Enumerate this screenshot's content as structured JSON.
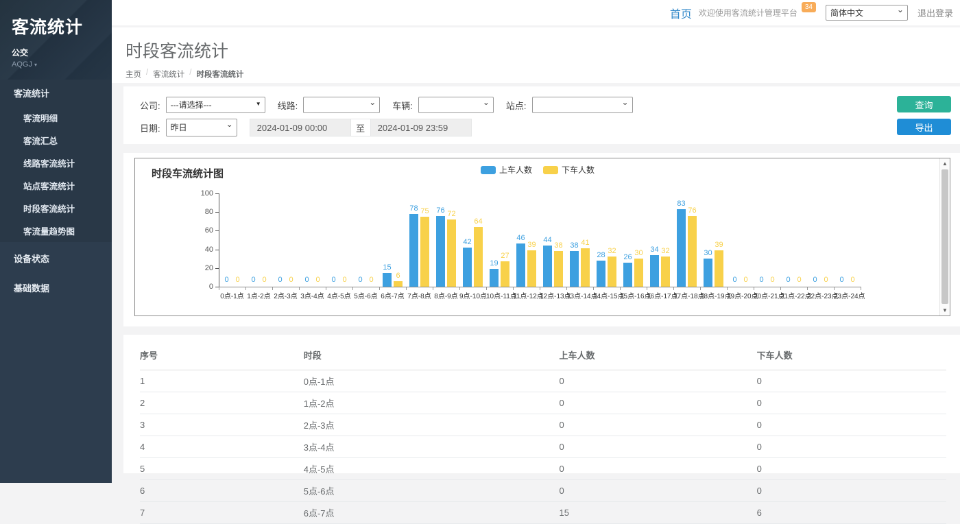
{
  "brand": {
    "title": "客流统计",
    "subtitle": "公交",
    "org": "AQGJ"
  },
  "sidebar": {
    "sections": [
      {
        "label": "客流统计",
        "active": true,
        "children": [
          "客流明细",
          "客流汇总",
          "线路客流统计",
          "站点客流统计",
          "时段客流统计",
          "客流量趋势图"
        ],
        "active_child": "时段客流统计"
      },
      {
        "label": "设备状态",
        "children": []
      },
      {
        "label": "基础数据",
        "children": []
      }
    ]
  },
  "topbar": {
    "home": "首页",
    "welcome": "欢迎使用客流统计管理平台",
    "badge": "34",
    "language": "简体中文",
    "logout": "退出登录"
  },
  "page": {
    "title": "时段客流统计",
    "breadcrumb": [
      "主页",
      "客流统计",
      "时段客流统计"
    ]
  },
  "filters": {
    "company_label": "公司:",
    "company_value": "---请选择---",
    "line_label": "线路:",
    "line_value": "",
    "vehicle_label": "车辆:",
    "vehicle_value": "",
    "station_label": "站点:",
    "station_value": "",
    "date_label": "日期:",
    "date_preset": "昨日",
    "date_from": "2024-01-09 00:00",
    "date_separator": "至",
    "date_to": "2024-01-09 23:59",
    "query_label": "查询",
    "export_label": "导出"
  },
  "colors": {
    "accent_green": "#2cb298",
    "accent_blue": "#1f8dd6",
    "badge_orange": "#f8ac59",
    "link_blue": "#3389ca",
    "bar_blue": "#3da0e0",
    "bar_yellow": "#f8d14a",
    "sidebar_bg": "#2d3d4e"
  },
  "chart_data": {
    "type": "bar",
    "title": "时段车流统计图",
    "categories": [
      "0点-1点",
      "1点-2点",
      "2点-3点",
      "3点-4点",
      "4点-5点",
      "5点-6点",
      "6点-7点",
      "7点-8点",
      "8点-9点",
      "9点-10点",
      "10点-11点",
      "11点-12点",
      "12点-13点",
      "13点-14点",
      "14点-15点",
      "15点-16点",
      "16点-17点",
      "17点-18点",
      "18点-19点",
      "19点-20点",
      "20点-21点",
      "21点-22点",
      "22点-23点",
      "23点-24点"
    ],
    "series": [
      {
        "name": "上车人数",
        "color": "#3da0e0",
        "values": [
          0,
          0,
          0,
          0,
          0,
          0,
          15,
          78,
          76,
          42,
          19,
          46,
          44,
          38,
          28,
          26,
          34,
          83,
          30,
          0,
          0,
          0,
          0,
          0
        ]
      },
      {
        "name": "下车人数",
        "color": "#f8d14a",
        "values": [
          0,
          0,
          0,
          0,
          0,
          0,
          6,
          75,
          72,
          64,
          27,
          39,
          38,
          41,
          32,
          30,
          32,
          76,
          39,
          0,
          0,
          0,
          0,
          0
        ]
      }
    ],
    "xlabel": "",
    "ylabel": "",
    "ylim": [
      0,
      100
    ],
    "yticks": [
      0,
      20,
      40,
      60,
      80,
      100
    ],
    "legend_position": "top-center",
    "grid": false
  },
  "table": {
    "headers": [
      "序号",
      "时段",
      "上车人数",
      "下车人数"
    ],
    "rows": [
      [
        "1",
        "0点-1点",
        "0",
        "0"
      ],
      [
        "2",
        "1点-2点",
        "0",
        "0"
      ],
      [
        "3",
        "2点-3点",
        "0",
        "0"
      ],
      [
        "4",
        "3点-4点",
        "0",
        "0"
      ],
      [
        "5",
        "4点-5点",
        "0",
        "0"
      ],
      [
        "6",
        "5点-6点",
        "0",
        "0"
      ],
      [
        "7",
        "6点-7点",
        "15",
        "6"
      ]
    ]
  }
}
